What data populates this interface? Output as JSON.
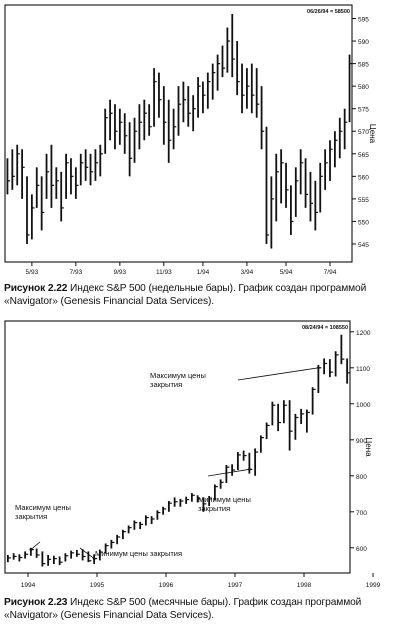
{
  "chart_data": [
    {
      "type": "bar",
      "subtype": "ohlc",
      "header": "06/26/94 = 58500",
      "ylabel": "Цена",
      "ylim": [
        541,
        598
      ],
      "yticks": [
        545,
        550,
        555,
        560,
        565,
        570,
        575,
        580,
        585,
        590,
        595
      ],
      "xlabels": [
        "5/93",
        "7/93",
        "9/93",
        "11/93",
        "1/94",
        "3/94",
        "5/94",
        "7/94"
      ],
      "grid": false,
      "bars": [
        {
          "date": "1993-03-28",
          "high": 564,
          "low": 556,
          "close": 559
        },
        {
          "date": "1993-04-04",
          "high": 566,
          "low": 557,
          "close": 560
        },
        {
          "date": "1993-04-11",
          "high": 567,
          "low": 558,
          "close": 565
        },
        {
          "date": "1993-04-18",
          "high": 566,
          "low": 555,
          "close": 562
        },
        {
          "date": "1993-04-25",
          "high": 560,
          "low": 545,
          "close": 547
        },
        {
          "date": "1993-05-02",
          "high": 556,
          "low": 546,
          "close": 553
        },
        {
          "date": "1993-05-09",
          "high": 562,
          "low": 553,
          "close": 558
        },
        {
          "date": "1993-05-16",
          "high": 560,
          "low": 548,
          "close": 552
        },
        {
          "date": "1993-05-23",
          "high": 565,
          "low": 555,
          "close": 561
        },
        {
          "date": "1993-05-30",
          "high": 567,
          "low": 553,
          "close": 558
        },
        {
          "date": "1993-06-06",
          "high": 562,
          "low": 555,
          "close": 559
        },
        {
          "date": "1993-06-13",
          "high": 561,
          "low": 550,
          "close": 553
        },
        {
          "date": "1993-06-20",
          "high": 565,
          "low": 555,
          "close": 563
        },
        {
          "date": "1993-06-27",
          "high": 564,
          "low": 556,
          "close": 560
        },
        {
          "date": "1993-07-04",
          "high": 562,
          "low": 555,
          "close": 558
        },
        {
          "date": "1993-07-11",
          "high": 565,
          "low": 558,
          "close": 563
        },
        {
          "date": "1993-07-18",
          "high": 566,
          "low": 559,
          "close": 562
        },
        {
          "date": "1993-07-25",
          "high": 565,
          "low": 558,
          "close": 561
        },
        {
          "date": "1993-08-01",
          "high": 566,
          "low": 559,
          "close": 563
        },
        {
          "date": "1993-08-08",
          "high": 567,
          "low": 560,
          "close": 565
        },
        {
          "date": "1993-08-15",
          "high": 575,
          "low": 565,
          "close": 573
        },
        {
          "date": "1993-08-22",
          "high": 577,
          "low": 568,
          "close": 574
        },
        {
          "date": "1993-08-29",
          "high": 576,
          "low": 566,
          "close": 570
        },
        {
          "date": "1993-09-05",
          "high": 575,
          "low": 567,
          "close": 572
        },
        {
          "date": "1993-09-12",
          "high": 574,
          "low": 565,
          "close": 569
        },
        {
          "date": "1993-09-19",
          "high": 572,
          "low": 560,
          "close": 564
        },
        {
          "date": "1993-09-26",
          "high": 573,
          "low": 563,
          "close": 570
        },
        {
          "date": "1993-10-03",
          "high": 576,
          "low": 566,
          "close": 572
        },
        {
          "date": "1993-10-10",
          "high": 577,
          "low": 568,
          "close": 574
        },
        {
          "date": "1993-10-17",
          "high": 576,
          "low": 569,
          "close": 571
        },
        {
          "date": "1993-10-24",
          "high": 584,
          "low": 571,
          "close": 581
        },
        {
          "date": "1993-10-31",
          "high": 583,
          "low": 573,
          "close": 577
        },
        {
          "date": "1993-11-07",
          "high": 580,
          "low": 567,
          "close": 572
        },
        {
          "date": "1993-11-14",
          "high": 577,
          "low": 563,
          "close": 568
        },
        {
          "date": "1993-11-21",
          "high": 575,
          "low": 566,
          "close": 571
        },
        {
          "date": "1993-11-28",
          "high": 580,
          "low": 569,
          "close": 576
        },
        {
          "date": "1993-12-05",
          "high": 581,
          "low": 572,
          "close": 577
        },
        {
          "date": "1993-12-12",
          "high": 580,
          "low": 571,
          "close": 574
        },
        {
          "date": "1993-12-19",
          "high": 578,
          "low": 570,
          "close": 575
        },
        {
          "date": "1993-12-26",
          "high": 582,
          "low": 573,
          "close": 580
        },
        {
          "date": "1994-01-02",
          "high": 581,
          "low": 574,
          "close": 578
        },
        {
          "date": "1994-01-09",
          "high": 583,
          "low": 575,
          "close": 581
        },
        {
          "date": "1994-01-16",
          "high": 585,
          "low": 577,
          "close": 583
        },
        {
          "date": "1994-01-23",
          "high": 587,
          "low": 579,
          "close": 585
        },
        {
          "date": "1994-01-30",
          "high": 589,
          "low": 582,
          "close": 584
        },
        {
          "date": "1994-02-06",
          "high": 593,
          "low": 583,
          "close": 590
        },
        {
          "date": "1994-02-13",
          "high": 596,
          "low": 582,
          "close": 586
        },
        {
          "date": "1994-02-20",
          "high": 590,
          "low": 578,
          "close": 581
        },
        {
          "date": "1994-02-27",
          "high": 585,
          "low": 574,
          "close": 578
        },
        {
          "date": "1994-03-06",
          "high": 584,
          "low": 575,
          "close": 580
        },
        {
          "date": "1994-03-13",
          "high": 585,
          "low": 574,
          "close": 578
        },
        {
          "date": "1994-03-20",
          "high": 584,
          "low": 573,
          "close": 576
        },
        {
          "date": "1994-03-27",
          "high": 580,
          "low": 566,
          "close": 570
        },
        {
          "date": "1994-04-03",
          "high": 571,
          "low": 545,
          "close": 547
        },
        {
          "date": "1994-04-10",
          "high": 560,
          "low": 544,
          "close": 555
        },
        {
          "date": "1994-04-17",
          "high": 565,
          "low": 550,
          "close": 561
        },
        {
          "date": "1994-04-24",
          "high": 566,
          "low": 554,
          "close": 563
        },
        {
          "date": "1994-05-01",
          "high": 563,
          "low": 553,
          "close": 557
        },
        {
          "date": "1994-05-08",
          "high": 558,
          "low": 547,
          "close": 550
        },
        {
          "date": "1994-05-15",
          "high": 562,
          "low": 551,
          "close": 559
        },
        {
          "date": "1994-05-22",
          "high": 566,
          "low": 556,
          "close": 563
        },
        {
          "date": "1994-05-29",
          "high": 564,
          "low": 553,
          "close": 556
        },
        {
          "date": "1994-06-05",
          "high": 561,
          "low": 550,
          "close": 554
        },
        {
          "date": "1994-06-12",
          "high": 559,
          "low": 548,
          "close": 552
        },
        {
          "date": "1994-06-19",
          "high": 563,
          "low": 552,
          "close": 560
        },
        {
          "date": "1994-06-26",
          "high": 566,
          "low": 557,
          "close": 563
        },
        {
          "date": "1994-07-03",
          "high": 568,
          "low": 559,
          "close": 566
        },
        {
          "date": "1994-07-10",
          "high": 570,
          "low": 562,
          "close": 568
        },
        {
          "date": "1994-07-17",
          "high": 573,
          "low": 564,
          "close": 570
        },
        {
          "date": "1994-07-24",
          "high": 575,
          "low": 566,
          "close": 572
        },
        {
          "date": "1994-07-31",
          "high": 587,
          "low": 572,
          "close": 585
        }
      ]
    },
    {
      "type": "bar",
      "subtype": "ohlc",
      "header": "08/24/94 = 108550",
      "ylabel": "Цена",
      "ylim": [
        530,
        1230
      ],
      "yticks": [
        600,
        700,
        800,
        900,
        1000,
        1100,
        1200
      ],
      "xlabels": [
        "1994",
        "1995",
        "1996",
        "1997",
        "1998",
        "1999"
      ],
      "grid": false,
      "bars": [
        {
          "date": "1993-09",
          "high": 580,
          "low": 560,
          "close": 572
        },
        {
          "date": "1993-10",
          "high": 585,
          "low": 567,
          "close": 576
        },
        {
          "date": "1993-11",
          "high": 582,
          "low": 562,
          "close": 573
        },
        {
          "date": "1993-12",
          "high": 590,
          "low": 570,
          "close": 582
        },
        {
          "date": "1994-01",
          "high": 600,
          "low": 578,
          "close": 595
        },
        {
          "date": "1994-02",
          "high": 598,
          "low": 572,
          "close": 580
        },
        {
          "date": "1994-03",
          "high": 590,
          "low": 548,
          "close": 556
        },
        {
          "date": "1994-04",
          "high": 580,
          "low": 550,
          "close": 568
        },
        {
          "date": "1994-05",
          "high": 578,
          "low": 555,
          "close": 570
        },
        {
          "date": "1994-06",
          "high": 576,
          "low": 552,
          "close": 560
        },
        {
          "date": "1994-07",
          "high": 585,
          "low": 562,
          "close": 578
        },
        {
          "date": "1994-08",
          "high": 592,
          "low": 570,
          "close": 586
        },
        {
          "date": "1994-09",
          "high": 594,
          "low": 575,
          "close": 582
        },
        {
          "date": "1994-10",
          "high": 596,
          "low": 565,
          "close": 576
        },
        {
          "date": "1994-11",
          "high": 590,
          "low": 560,
          "close": 564
        },
        {
          "date": "1994-12",
          "high": 582,
          "low": 555,
          "close": 570
        },
        {
          "date": "1995-01",
          "high": 595,
          "low": 565,
          "close": 588
        },
        {
          "date": "1995-02",
          "high": 612,
          "low": 584,
          "close": 606
        },
        {
          "date": "1995-03",
          "high": 622,
          "low": 598,
          "close": 615
        },
        {
          "date": "1995-04",
          "high": 636,
          "low": 610,
          "close": 630
        },
        {
          "date": "1995-05",
          "high": 650,
          "low": 624,
          "close": 645
        },
        {
          "date": "1995-06",
          "high": 662,
          "low": 640,
          "close": 656
        },
        {
          "date": "1995-07",
          "high": 676,
          "low": 650,
          "close": 670
        },
        {
          "date": "1995-08",
          "high": 672,
          "low": 652,
          "close": 665
        },
        {
          "date": "1995-09",
          "high": 690,
          "low": 662,
          "close": 684
        },
        {
          "date": "1995-10",
          "high": 688,
          "low": 666,
          "close": 680
        },
        {
          "date": "1995-11",
          "high": 704,
          "low": 678,
          "close": 698
        },
        {
          "date": "1995-12",
          "high": 714,
          "low": 692,
          "close": 708
        },
        {
          "date": "1996-01",
          "high": 730,
          "low": 700,
          "close": 724
        },
        {
          "date": "1996-02",
          "high": 740,
          "low": 714,
          "close": 728
        },
        {
          "date": "1996-03",
          "high": 736,
          "low": 714,
          "close": 730
        },
        {
          "date": "1996-04",
          "high": 742,
          "low": 722,
          "close": 734
        },
        {
          "date": "1996-05",
          "high": 752,
          "low": 728,
          "close": 746
        },
        {
          "date": "1996-06",
          "high": 746,
          "low": 726,
          "close": 736
        },
        {
          "date": "1996-07",
          "high": 740,
          "low": 700,
          "close": 722
        },
        {
          "date": "1996-08",
          "high": 744,
          "low": 716,
          "close": 738
        },
        {
          "date": "1996-09",
          "high": 776,
          "low": 732,
          "close": 770
        },
        {
          "date": "1996-10",
          "high": 790,
          "low": 764,
          "close": 782
        },
        {
          "date": "1996-11",
          "high": 830,
          "low": 780,
          "close": 824
        },
        {
          "date": "1996-12",
          "high": 832,
          "low": 800,
          "close": 816
        },
        {
          "date": "1997-01",
          "high": 866,
          "low": 816,
          "close": 858
        },
        {
          "date": "1997-02",
          "high": 870,
          "low": 842,
          "close": 856
        },
        {
          "date": "1997-03",
          "high": 864,
          "low": 806,
          "close": 818
        },
        {
          "date": "1997-04",
          "high": 876,
          "low": 800,
          "close": 866
        },
        {
          "date": "1997-05",
          "high": 912,
          "low": 864,
          "close": 906
        },
        {
          "date": "1997-06",
          "high": 948,
          "low": 902,
          "close": 940
        },
        {
          "date": "1997-07",
          "high": 1006,
          "low": 940,
          "close": 996
        },
        {
          "date": "1997-08",
          "high": 1000,
          "low": 924,
          "close": 948
        },
        {
          "date": "1997-09",
          "high": 1010,
          "low": 946,
          "close": 996
        },
        {
          "date": "1997-10",
          "high": 1010,
          "low": 870,
          "close": 924
        },
        {
          "date": "1997-11",
          "high": 972,
          "low": 900,
          "close": 962
        },
        {
          "date": "1997-12",
          "high": 986,
          "low": 944,
          "close": 972
        },
        {
          "date": "1998-01",
          "high": 984,
          "low": 920,
          "close": 976
        },
        {
          "date": "1998-02",
          "high": 1046,
          "low": 970,
          "close": 1040
        },
        {
          "date": "1998-03",
          "high": 1108,
          "low": 1030,
          "close": 1100
        },
        {
          "date": "1998-04",
          "high": 1126,
          "low": 1082,
          "close": 1112
        },
        {
          "date": "1998-05",
          "high": 1124,
          "low": 1074,
          "close": 1088
        },
        {
          "date": "1998-06",
          "high": 1146,
          "low": 1076,
          "close": 1136
        },
        {
          "date": "1998-07",
          "high": 1192,
          "low": 1110,
          "close": 1124
        },
        {
          "date": "1998-08",
          "high": 1126,
          "low": 1056,
          "close": 1086
        }
      ]
    }
  ],
  "figure1": {
    "header": "06/26/94 = 58500",
    "caption_label": "Рисунок 2.22",
    "caption_text": " Индекс S&P 500 (недельные бары). График создан программой «Navigator» (Genesis Financial Data Services)."
  },
  "figure2": {
    "header": "08/24/94 = 108550",
    "caption_label": "Рисунок 2.23",
    "caption_text": " Индекс S&P 500 (месячные бары). График создан программой «Navigator» (Genesis Financial Data Services).",
    "annotations": [
      {
        "text": [
          "Максимум цены",
          "закрытия"
        ],
        "target": "1998-03"
      },
      {
        "text": [
          "Минимум цены",
          "закрытия"
        ],
        "target": "1997-03"
      },
      {
        "text": [
          "Максимум цены",
          "закрытия"
        ],
        "target": "1994-01"
      },
      {
        "text": [
          "Минимум цены закрытия"
        ],
        "target": "1994-12"
      }
    ]
  }
}
